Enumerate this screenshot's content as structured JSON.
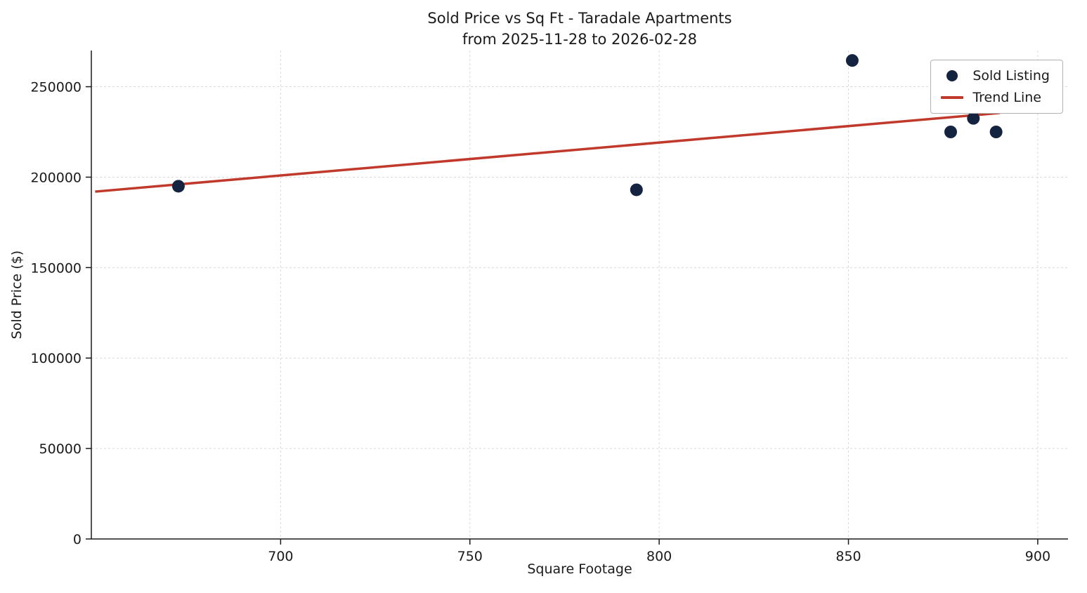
{
  "chart_data": {
    "type": "scatter",
    "title": "Sold Price vs Sq Ft - Taradale Apartments",
    "subtitle": "from 2025-11-28 to 2026-02-28",
    "xlabel": "Square Footage",
    "ylabel": "Sold Price ($)",
    "xlim": [
      650,
      908
    ],
    "ylim": [
      0,
      270000
    ],
    "xticks": [
      700,
      750,
      800,
      850,
      900
    ],
    "yticks": [
      0,
      50000,
      100000,
      150000,
      200000,
      250000
    ],
    "grid": true,
    "grid_style": "dashed",
    "legend": {
      "position": "upper right",
      "entries": [
        {
          "label": "Sold Listing",
          "type": "marker",
          "color": "#142440"
        },
        {
          "label": "Trend Line",
          "type": "line",
          "color": "#c0392b"
        }
      ]
    },
    "colors": {
      "marker": "#142440",
      "trend_line": "#c0392b",
      "grid": "#d9d9d9",
      "axis": "#1a1a1a",
      "text": "#1a1a1a"
    },
    "series": [
      {
        "name": "Sold Listing",
        "type": "scatter",
        "color": "#142440",
        "points": [
          [
            673,
            195000
          ],
          [
            794,
            193000
          ],
          [
            851,
            264500
          ],
          [
            877,
            225000
          ],
          [
            883,
            232500
          ],
          [
            889,
            225000
          ]
        ]
      },
      {
        "name": "Trend Line",
        "type": "line",
        "color": "#c0392b",
        "points": [
          [
            651,
            192000
          ],
          [
            890,
            235500
          ]
        ]
      }
    ]
  }
}
